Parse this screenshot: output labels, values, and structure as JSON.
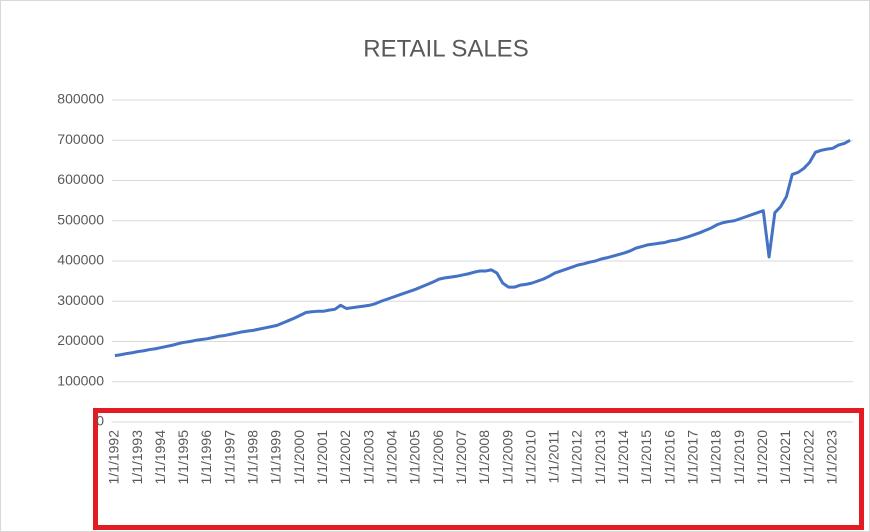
{
  "chart_data": {
    "type": "line",
    "title": "RETAIL SALES",
    "categories": [
      "1/1/1992",
      null,
      null,
      null,
      "1/1/1993",
      null,
      null,
      null,
      "1/1/1994",
      null,
      null,
      null,
      "1/1/1995",
      null,
      null,
      null,
      "1/1/1996",
      null,
      null,
      null,
      "1/1/1997",
      null,
      null,
      null,
      "1/1/1998",
      null,
      null,
      null,
      "1/1/1999",
      null,
      null,
      null,
      "1/1/2000",
      null,
      null,
      null,
      "1/1/2001",
      null,
      null,
      null,
      "1/1/2002",
      null,
      null,
      null,
      "1/1/2003",
      null,
      null,
      null,
      "1/1/2004",
      null,
      null,
      null,
      "1/1/2005",
      null,
      null,
      null,
      "1/1/2006",
      null,
      null,
      null,
      "1/1/2007",
      null,
      null,
      null,
      "1/1/2008",
      null,
      null,
      null,
      "1/1/2009",
      null,
      null,
      null,
      "1/1/2010",
      null,
      null,
      null,
      "1/1/2011",
      null,
      null,
      null,
      "1/1/2012",
      null,
      null,
      null,
      "1/1/2013",
      null,
      null,
      null,
      "1/1/2014",
      null,
      null,
      null,
      "1/1/2015",
      null,
      null,
      null,
      "1/1/2016",
      null,
      null,
      null,
      "1/1/2017",
      null,
      null,
      null,
      "1/1/2018",
      null,
      null,
      null,
      "1/1/2019",
      null,
      null,
      null,
      "1/1/2020",
      null,
      null,
      null,
      "1/1/2021",
      null,
      null,
      null,
      "1/1/2022",
      null,
      null,
      null,
      "1/1/2023",
      null,
      null,
      null
    ],
    "values": [
      165000,
      167000,
      170000,
      172000,
      175000,
      177000,
      180000,
      182000,
      185000,
      188000,
      191000,
      195000,
      198000,
      200000,
      203000,
      205000,
      207000,
      210000,
      213000,
      215000,
      218000,
      221000,
      224000,
      226000,
      228000,
      231000,
      234000,
      237000,
      240000,
      246000,
      252000,
      258000,
      265000,
      272000,
      274000,
      275000,
      275000,
      278000,
      280000,
      290000,
      282000,
      284000,
      286000,
      288000,
      290000,
      294000,
      300000,
      305000,
      310000,
      315000,
      320000,
      325000,
      330000,
      336000,
      342000,
      348000,
      355000,
      358000,
      360000,
      362000,
      365000,
      368000,
      372000,
      375000,
      375000,
      378000,
      370000,
      345000,
      335000,
      335000,
      340000,
      342000,
      345000,
      350000,
      355000,
      362000,
      370000,
      375000,
      380000,
      385000,
      390000,
      393000,
      397000,
      400000,
      405000,
      408000,
      412000,
      416000,
      420000,
      425000,
      432000,
      436000,
      440000,
      442000,
      444000,
      446000,
      450000,
      452000,
      456000,
      460000,
      465000,
      470000,
      476000,
      482000,
      490000,
      495000,
      498000,
      500000,
      505000,
      510000,
      515000,
      520000,
      525000,
      410000,
      520000,
      535000,
      560000,
      615000,
      620000,
      630000,
      645000,
      670000,
      675000,
      678000,
      680000,
      688000,
      692000,
      700000
    ],
    "color": "#4472c4",
    "ylim": [
      0,
      800000
    ],
    "yticks": [
      0,
      100000,
      200000,
      300000,
      400000,
      500000,
      600000,
      700000,
      800000
    ],
    "grid": true
  }
}
